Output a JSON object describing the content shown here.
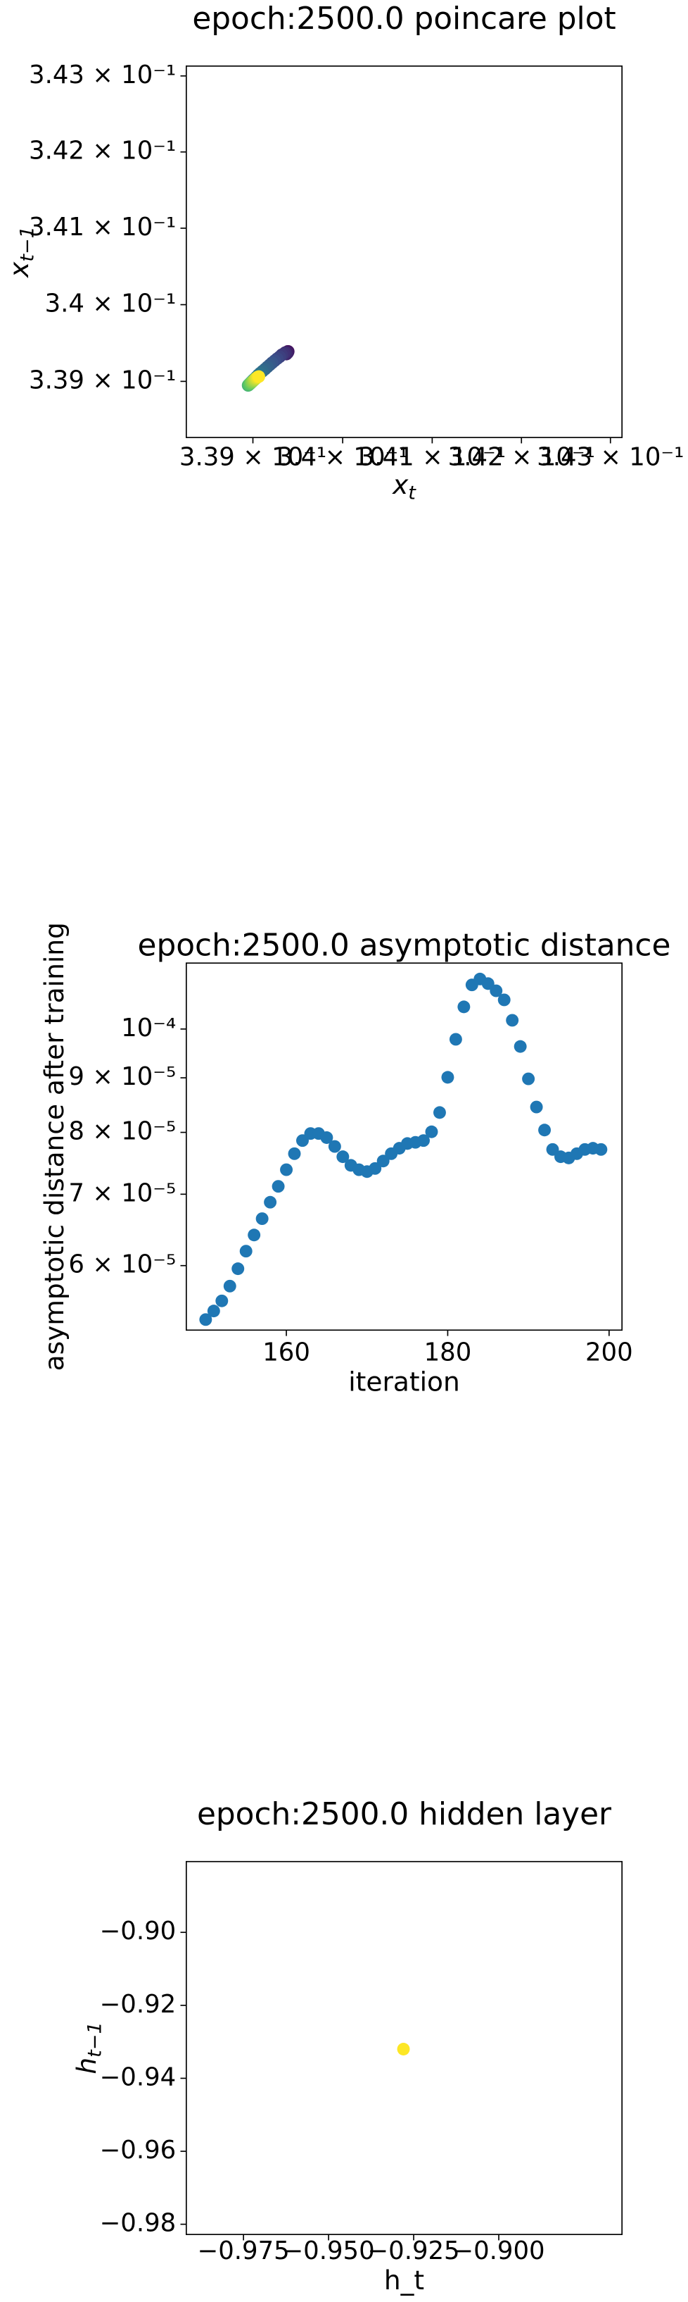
{
  "charts": [
    {
      "type": "scatter",
      "title": "epoch:2500.0 poincare plot",
      "xlabel": {
        "text": "x",
        "subscript": "t"
      },
      "ylabel": {
        "text": "x",
        "subscript": "t−1"
      },
      "xscale": "log",
      "yscale": "log",
      "x": [
        0.339388,
        0.339393,
        0.339387,
        0.339391,
        0.339387,
        0.339373,
        0.33936,
        0.339344,
        0.339321,
        0.339298,
        0.33927,
        0.339242,
        0.339214,
        0.339188,
        0.339161,
        0.339135,
        0.339107,
        0.339082,
        0.339061,
        0.339041,
        0.339023,
        0.339007,
        0.338993,
        0.338982,
        0.338972,
        0.338964,
        0.338959,
        0.338954,
        0.338951,
        0.338947,
        0.338949,
        0.338952,
        0.338957,
        0.338962,
        0.338969,
        0.338975,
        0.338982,
        0.33899,
        0.338998,
        0.339007,
        0.339015,
        0.339023,
        0.339031,
        0.339039,
        0.339048,
        0.339056,
        0.339066
      ],
      "y": [
        0.33939,
        0.33939,
        0.339385,
        0.339385,
        0.339373,
        0.339356,
        0.339375,
        0.33936,
        0.339346,
        0.339321,
        0.339296,
        0.339269,
        0.339242,
        0.339215,
        0.339188,
        0.33916,
        0.339133,
        0.339108,
        0.339085,
        0.33906,
        0.339038,
        0.339021,
        0.339004,
        0.33899,
        0.338979,
        0.338969,
        0.338962,
        0.338956,
        0.338952,
        0.338948,
        0.33895,
        0.338954,
        0.338958,
        0.338963,
        0.338969,
        0.338977,
        0.338985,
        0.338992,
        0.339002,
        0.33901,
        0.339019,
        0.339027,
        0.339037,
        0.339044,
        0.339052,
        0.339058,
        0.339062
      ],
      "colormap": [
        "#440154",
        "#3b528b",
        "#21918c",
        "#5ec962",
        "#fde725"
      ],
      "xlim": [
        0.33826,
        0.34313
      ],
      "ylim": [
        0.33827,
        0.34313
      ],
      "xticks": [
        {
          "value": 0.339,
          "label": "3.39 × 10⁻¹"
        },
        {
          "value": 0.34,
          "label": "3.4 × 10⁻¹"
        },
        {
          "value": 0.341,
          "label": "3.41 × 10⁻¹"
        },
        {
          "value": 0.342,
          "label": "3.42 × 10⁻¹"
        },
        {
          "value": 0.343,
          "label": "3.43 × 10⁻¹"
        }
      ],
      "yticks": [
        {
          "value": 0.339,
          "label": "3.39 × 10⁻¹"
        },
        {
          "value": 0.34,
          "label": "3.4 × 10⁻¹"
        },
        {
          "value": 0.341,
          "label": "3.41 × 10⁻¹"
        },
        {
          "value": 0.342,
          "label": "3.42 × 10⁻¹"
        },
        {
          "value": 0.343,
          "label": "3.43 × 10⁻¹"
        }
      ]
    },
    {
      "type": "scatter",
      "title": "epoch:2500.0 asymptotic distance",
      "xlabel": {
        "text": "iteration"
      },
      "ylabel": {
        "text": "asymptotic distance after training"
      },
      "yscale": "log",
      "color": "#1f77b4",
      "x": [
        150,
        151,
        152,
        153,
        154,
        155,
        156,
        157,
        158,
        159,
        160,
        161,
        162,
        163,
        164,
        165,
        166,
        167,
        168,
        169,
        170,
        171,
        172,
        173,
        174,
        175,
        176,
        177,
        178,
        179,
        180,
        181,
        182,
        183,
        184,
        185,
        186,
        187,
        188,
        189,
        190,
        191,
        192,
        193,
        194,
        195,
        196,
        197,
        198,
        199
      ],
      "y": [
        5.34e-05,
        5.44e-05,
        5.56e-05,
        5.74e-05,
        5.96e-05,
        6.19e-05,
        6.41e-05,
        6.64e-05,
        6.88e-05,
        7.12e-05,
        7.38e-05,
        7.64e-05,
        7.86e-05,
        7.98e-05,
        7.98e-05,
        7.91e-05,
        7.76e-05,
        7.59e-05,
        7.45e-05,
        7.38e-05,
        7.35e-05,
        7.4e-05,
        7.52e-05,
        7.64e-05,
        7.73e-05,
        7.81e-05,
        7.83e-05,
        7.86e-05,
        8.01e-05,
        8.35e-05,
        9.01e-05,
        9.78e-05,
        0.0001049,
        0.00011,
        0.0001114,
        0.0001103,
        0.0001086,
        0.0001065,
        0.0001019,
        9.63e-05,
        8.98e-05,
        8.45e-05,
        8.04e-05,
        7.71e-05,
        7.59e-05,
        7.57e-05,
        7.64e-05,
        7.71e-05,
        7.73e-05,
        7.71e-05
      ],
      "xlim": [
        147.6,
        201.6
      ],
      "ylim": [
        5.22e-05,
        0.0001153
      ],
      "xticks": [
        160,
        180,
        200
      ],
      "yticks": [
        {
          "value": 0.0001,
          "label": "10⁻⁴"
        },
        {
          "value": 9e-05,
          "label": "9 × 10⁻⁵"
        },
        {
          "value": 8e-05,
          "label": "8 × 10⁻⁵"
        },
        {
          "value": 7e-05,
          "label": "7 × 10⁻⁵"
        },
        {
          "value": 6e-05,
          "label": "6 × 10⁻⁵"
        }
      ]
    },
    {
      "type": "scatter",
      "title": "epoch:2500.0 hidden layer",
      "xlabel": {
        "text": "h_t"
      },
      "ylabel": {
        "text": "h",
        "subscript": "t−1"
      },
      "color": "#fde725",
      "x": [
        -0.928
      ],
      "y": [
        -0.932
      ],
      "xlim": [
        -0.9918,
        -0.8638
      ],
      "ylim": [
        -0.9828,
        -0.8806
      ],
      "xticks": [
        {
          "value": -0.975,
          "label": "−0.975"
        },
        {
          "value": -0.95,
          "label": "−0.950"
        },
        {
          "value": -0.925,
          "label": "−0.925"
        },
        {
          "value": -0.9,
          "label": "−0.900"
        }
      ],
      "yticks": [
        {
          "value": -0.9,
          "label": "−0.90"
        },
        {
          "value": -0.92,
          "label": "−0.92"
        },
        {
          "value": -0.94,
          "label": "−0.94"
        },
        {
          "value": -0.96,
          "label": "−0.96"
        },
        {
          "value": -0.98,
          "label": "−0.98"
        }
      ]
    }
  ]
}
